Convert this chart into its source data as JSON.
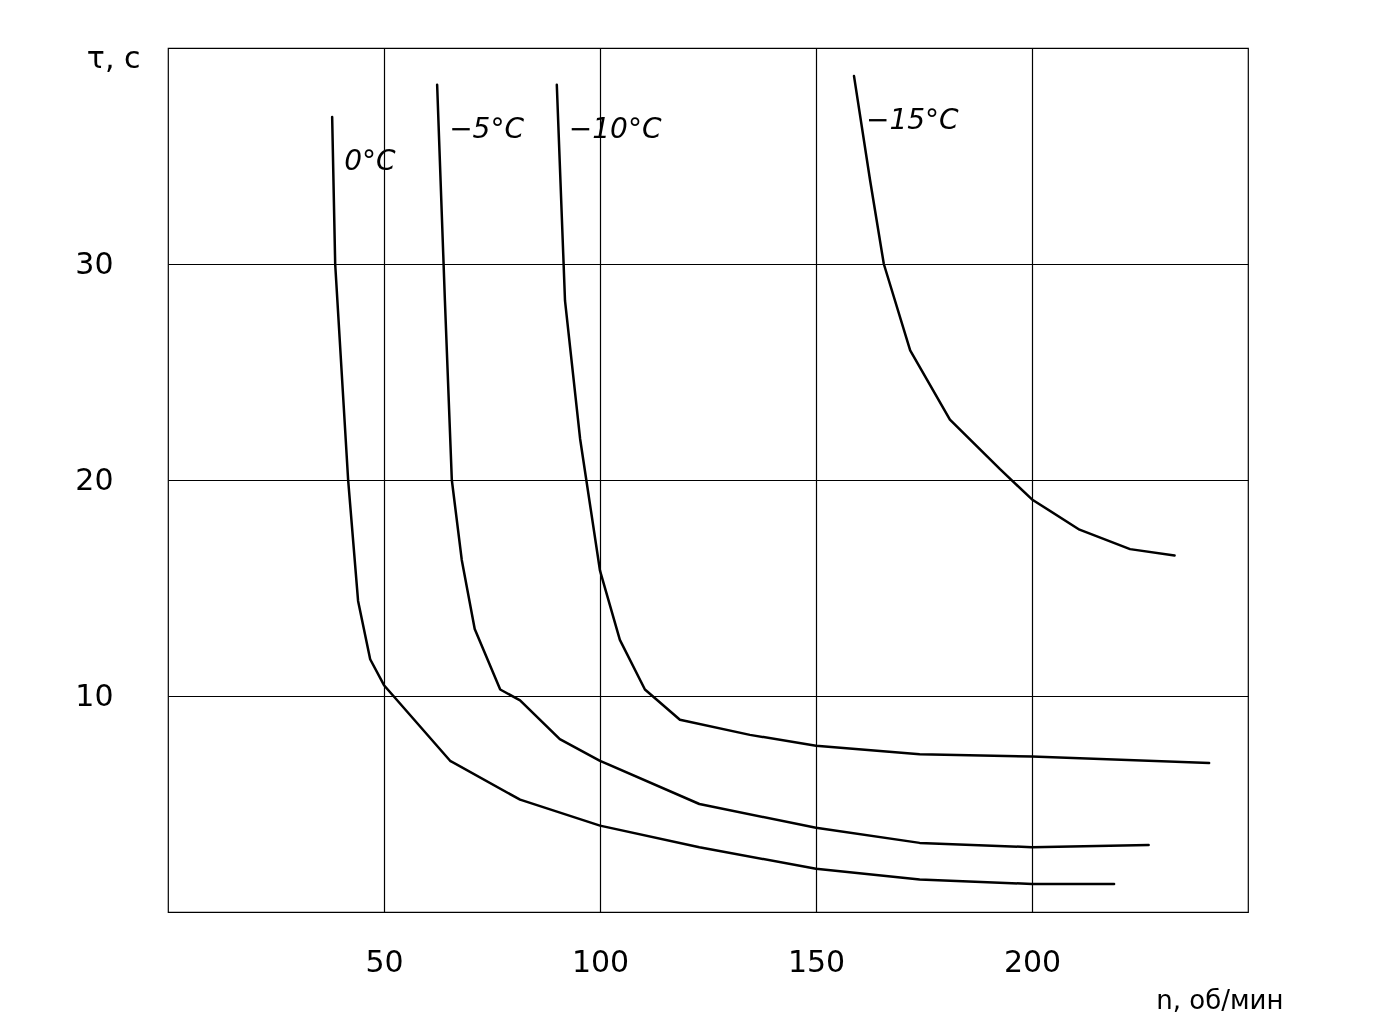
{
  "chart_data": {
    "type": "line",
    "xlabel": "n, об/мин",
    "ylabel": "τ, с",
    "xlim": [
      0,
      250
    ],
    "ylim": [
      0,
      40
    ],
    "xticks": [
      50,
      100,
      150,
      200
    ],
    "yticks": [
      10,
      20,
      30
    ],
    "grid": true,
    "legend": false,
    "marker": "none",
    "line_style": "solid",
    "series": [
      {
        "name": "0°C",
        "color": "#000000",
        "x": [
          38,
          38.7,
          41.7,
          44,
          46.8,
          50,
          65.3,
          81.5,
          100,
          123,
          150,
          174,
          200,
          219
        ],
        "values": [
          36.8,
          30,
          20,
          14.4,
          11.7,
          10.5,
          7,
          5.2,
          4,
          3,
          2,
          1.5,
          1.3,
          1.3
        ]
      },
      {
        "name": "−5°C",
        "color": "#000000",
        "x": [
          62.3,
          64.1,
          65.7,
          68,
          71,
          76.9,
          81.5,
          90.7,
          100,
          123,
          150,
          174,
          200,
          227
        ],
        "values": [
          38.3,
          28.3,
          20,
          16.3,
          13.1,
          10.3,
          9.8,
          8,
          7,
          5,
          3.9,
          3.2,
          3,
          3.1
        ]
      },
      {
        "name": "−10°C",
        "color": "#000000",
        "x": [
          90,
          91.9,
          95.4,
          100,
          104.6,
          110.4,
          118.5,
          134.7,
          150,
          174,
          200,
          241
        ],
        "values": [
          38.3,
          28.3,
          21.9,
          15.8,
          12.6,
          10.3,
          8.9,
          8.2,
          7.7,
          7.3,
          7.2,
          6.9
        ]
      },
      {
        "name": "−15°C",
        "color": "#000000",
        "x": [
          158.8,
          162.5,
          165.7,
          171.8,
          181,
          192.6,
          200,
          211,
          222.7,
          233
        ],
        "values": [
          38.7,
          33.9,
          30,
          26,
          22.8,
          20.5,
          19.1,
          17.7,
          16.8,
          16.5
        ]
      }
    ]
  }
}
